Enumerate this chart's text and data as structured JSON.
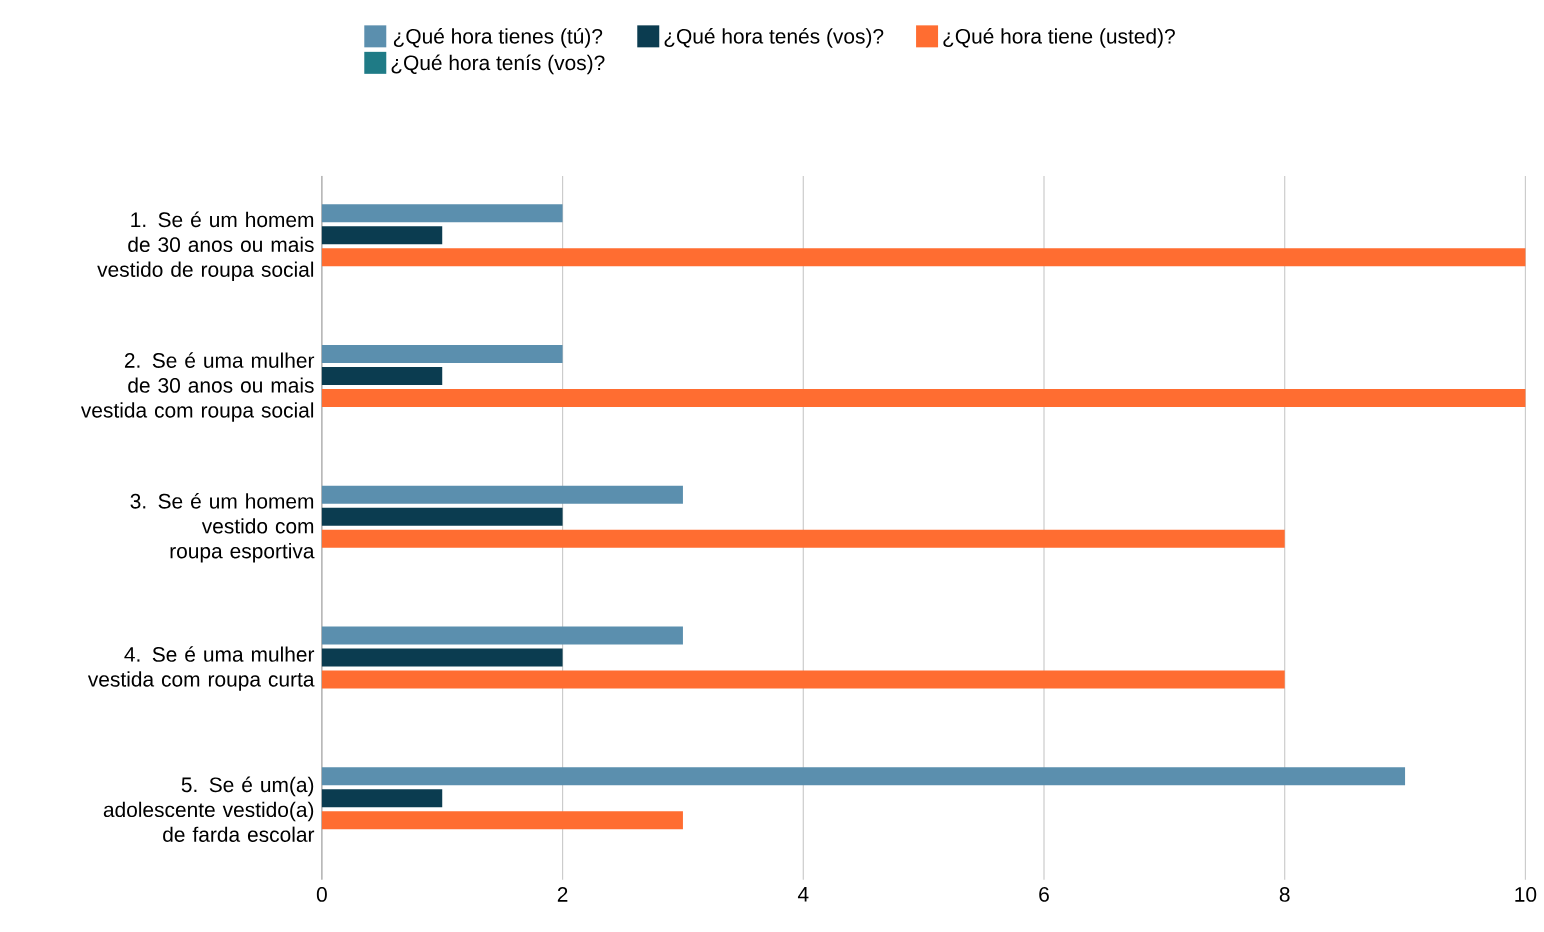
{
  "chart_data": {
    "type": "bar",
    "orientation": "horizontal",
    "categories": [
      "1. Se é um homem de 30 anos ou mais vestido de roupa social",
      "2. Se é uma mulher de 30 anos ou mais vestida com roupa social",
      "3. Se é um homem vestido com roupa esportiva",
      "4. Se é uma mulher vestida com roupa curta",
      "5. Se é um(a) adolescente vestido(a) de farda escolar"
    ],
    "series": [
      {
        "name": "¿Qué hora tienes (tú)?",
        "color": "#5b8fae",
        "values": [
          2,
          2,
          3,
          3,
          9
        ]
      },
      {
        "name": "¿Qué hora tenés (vos)?",
        "color": "#0b3c50",
        "values": [
          1,
          1,
          2,
          2,
          1
        ]
      },
      {
        "name": "¿Qué hora tiene (usted)?",
        "color": "#ff6d31",
        "values": [
          10,
          10,
          8,
          8,
          3
        ]
      },
      {
        "name": "¿Qué hora tenís (vos)?",
        "color": "#1f7b86",
        "values": [
          0,
          0,
          0,
          0,
          0
        ]
      }
    ],
    "xlim": [
      0,
      10
    ],
    "xticks": [
      0,
      2,
      4,
      6,
      8,
      10
    ],
    "grid": "x",
    "legend": "top"
  }
}
